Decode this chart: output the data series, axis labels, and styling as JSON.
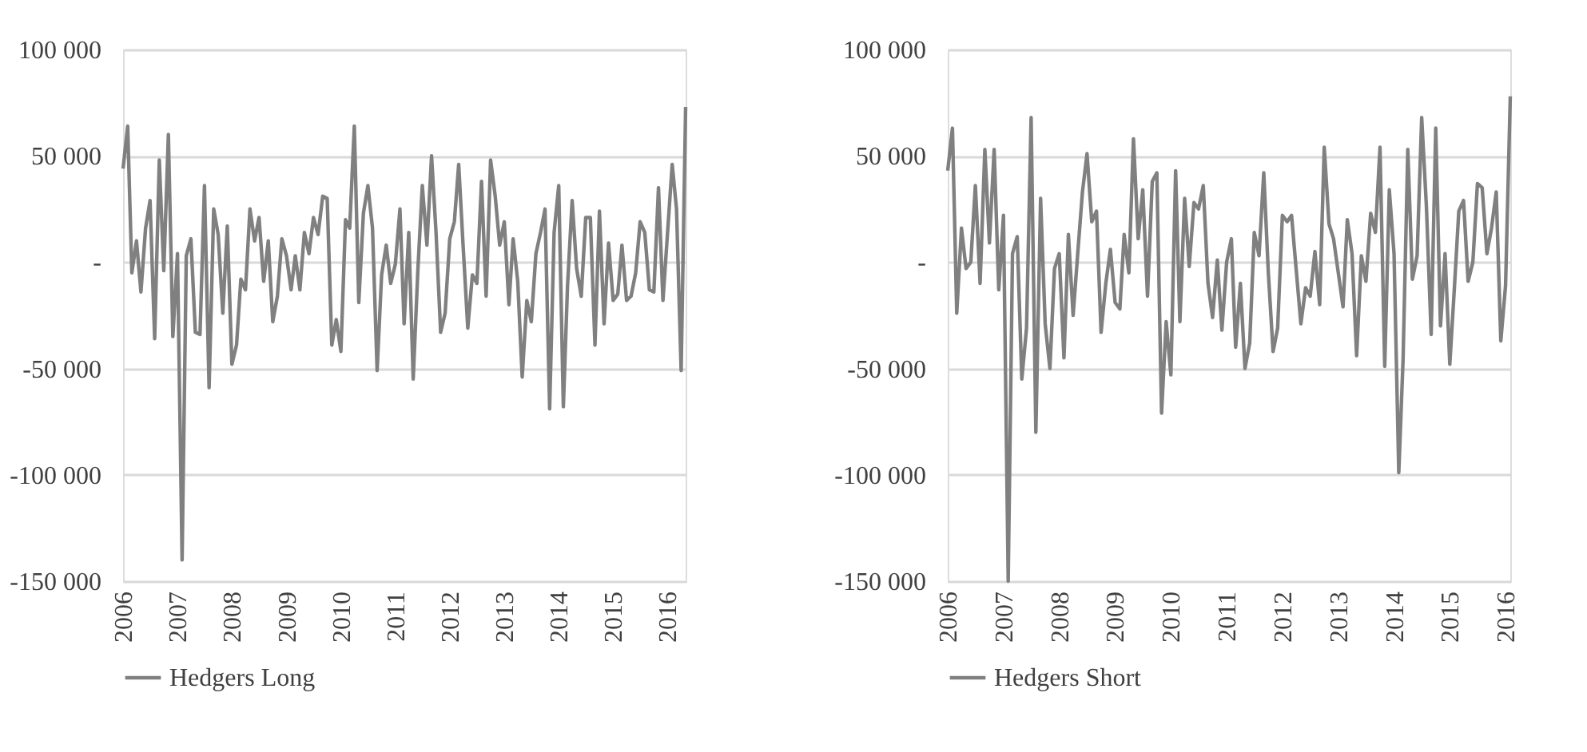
{
  "chart_data": [
    {
      "type": "line",
      "legend": "bottom",
      "grid": "y",
      "line_style": "solid",
      "xlim": [
        "2006-01",
        "2016-05"
      ],
      "xticks": [
        "2006",
        "2007",
        "2008",
        "2009",
        "2010",
        "2011",
        "2012",
        "2013",
        "2014",
        "2015",
        "2016"
      ],
      "ylim": [
        -150000,
        100000
      ],
      "yticks": [
        {
          "value": -150000,
          "label": "-150 000"
        },
        {
          "value": -100000,
          "label": "-100 000"
        },
        {
          "value": -50000,
          "label": "-50 000"
        },
        {
          "value": 0,
          "label": "-"
        },
        {
          "value": 50000,
          "label": "50 000"
        },
        {
          "value": 100000,
          "label": "100 000"
        }
      ],
      "x": [
        "2006-01",
        "2006-02",
        "2006-03",
        "2006-04",
        "2006-05",
        "2006-06",
        "2006-07",
        "2006-08",
        "2006-09",
        "2006-10",
        "2006-11",
        "2006-12",
        "2007-01",
        "2007-02",
        "2007-03",
        "2007-04",
        "2007-05",
        "2007-06",
        "2007-07",
        "2007-08",
        "2007-09",
        "2007-10",
        "2007-11",
        "2007-12",
        "2008-01",
        "2008-02",
        "2008-03",
        "2008-04",
        "2008-05",
        "2008-06",
        "2008-07",
        "2008-08",
        "2008-09",
        "2008-10",
        "2008-11",
        "2008-12",
        "2009-01",
        "2009-02",
        "2009-03",
        "2009-04",
        "2009-05",
        "2009-06",
        "2009-07",
        "2009-08",
        "2009-09",
        "2009-10",
        "2009-11",
        "2009-12",
        "2010-01",
        "2010-02",
        "2010-03",
        "2010-04",
        "2010-05",
        "2010-06",
        "2010-07",
        "2010-08",
        "2010-09",
        "2010-10",
        "2010-11",
        "2010-12",
        "2011-01",
        "2011-02",
        "2011-03",
        "2011-04",
        "2011-05",
        "2011-06",
        "2011-07",
        "2011-08",
        "2011-09",
        "2011-10",
        "2011-11",
        "2011-12",
        "2012-01",
        "2012-02",
        "2012-03",
        "2012-04",
        "2012-05",
        "2012-06",
        "2012-07",
        "2012-08",
        "2012-09",
        "2012-10",
        "2012-11",
        "2012-12",
        "2013-01",
        "2013-02",
        "2013-03",
        "2013-04",
        "2013-05",
        "2013-06",
        "2013-07",
        "2013-08",
        "2013-09",
        "2013-10",
        "2013-11",
        "2013-12",
        "2014-01",
        "2014-02",
        "2014-03",
        "2014-04",
        "2014-05",
        "2014-06",
        "2014-07",
        "2014-08",
        "2014-09",
        "2014-10",
        "2014-11",
        "2014-12",
        "2015-01",
        "2015-02",
        "2015-03",
        "2015-04",
        "2015-05",
        "2015-06",
        "2015-07",
        "2015-08",
        "2015-09",
        "2015-10",
        "2015-11",
        "2015-12",
        "2016-01",
        "2016-02",
        "2016-03",
        "2016-04",
        "2016-05"
      ],
      "series": [
        {
          "name": "Hedgers Long",
          "color": "#808080",
          "values": [
            44000,
            64000,
            -5000,
            10000,
            -14000,
            16000,
            29000,
            -36000,
            48000,
            -4000,
            60000,
            -35000,
            4000,
            -140000,
            3000,
            11000,
            -33000,
            -34000,
            36000,
            -59000,
            25000,
            13000,
            -24000,
            17000,
            -48000,
            -39000,
            -8000,
            -13000,
            25000,
            10000,
            21000,
            -9000,
            10000,
            -28000,
            -16000,
            11000,
            3000,
            -13000,
            3000,
            -13000,
            14000,
            4000,
            21000,
            13000,
            31000,
            30000,
            -39000,
            -27000,
            -42000,
            20000,
            16000,
            64000,
            -19000,
            23000,
            36000,
            16000,
            -51000,
            -6000,
            8000,
            -10000,
            -1000,
            25000,
            -29000,
            14000,
            -55000,
            -4000,
            36000,
            8000,
            50000,
            14000,
            -33000,
            -24000,
            11000,
            19000,
            46000,
            6000,
            -31000,
            -6000,
            -10000,
            38000,
            -16000,
            48000,
            31000,
            8000,
            19000,
            -20000,
            11000,
            -9000,
            -54000,
            -18000,
            -28000,
            4000,
            14000,
            25000,
            -69000,
            14000,
            36000,
            -68000,
            -11000,
            29000,
            -3000,
            -16000,
            21000,
            21000,
            -39000,
            24000,
            -29000,
            9000,
            -18000,
            -15000,
            8000,
            -18000,
            -16000,
            -5000,
            19000,
            14000,
            -13000,
            -14000,
            35000,
            -18000,
            14000,
            46000,
            25000,
            -51000,
            73000
          ]
        }
      ]
    },
    {
      "type": "line",
      "legend": "bottom",
      "grid": "y",
      "line_style": "solid",
      "xlim": [
        "2006-01",
        "2016-02"
      ],
      "xticks": [
        "2006",
        "2007",
        "2008",
        "2009",
        "2010",
        "2011",
        "2012",
        "2013",
        "2014",
        "2015",
        "2016"
      ],
      "ylim": [
        -150000,
        100000
      ],
      "yticks": [
        {
          "value": -150000,
          "label": "-150 000"
        },
        {
          "value": -100000,
          "label": "-100 000"
        },
        {
          "value": -50000,
          "label": "-50 000"
        },
        {
          "value": 0,
          "label": "-"
        },
        {
          "value": 50000,
          "label": "50 000"
        },
        {
          "value": 100000,
          "label": "100 000"
        }
      ],
      "x": [
        "2006-01",
        "2006-02",
        "2006-03",
        "2006-04",
        "2006-05",
        "2006-06",
        "2006-07",
        "2006-08",
        "2006-09",
        "2006-10",
        "2006-11",
        "2006-12",
        "2007-01",
        "2007-02",
        "2007-03",
        "2007-04",
        "2007-05",
        "2007-06",
        "2007-07",
        "2007-08",
        "2007-09",
        "2007-10",
        "2007-11",
        "2007-12",
        "2008-01",
        "2008-02",
        "2008-03",
        "2008-04",
        "2008-05",
        "2008-06",
        "2008-07",
        "2008-08",
        "2008-09",
        "2008-10",
        "2008-11",
        "2008-12",
        "2009-01",
        "2009-02",
        "2009-03",
        "2009-04",
        "2009-05",
        "2009-06",
        "2009-07",
        "2009-08",
        "2009-09",
        "2009-10",
        "2009-11",
        "2009-12",
        "2010-01",
        "2010-02",
        "2010-03",
        "2010-04",
        "2010-05",
        "2010-06",
        "2010-07",
        "2010-08",
        "2010-09",
        "2010-10",
        "2010-11",
        "2010-12",
        "2011-01",
        "2011-02",
        "2011-03",
        "2011-04",
        "2011-05",
        "2011-06",
        "2011-07",
        "2011-08",
        "2011-09",
        "2011-10",
        "2011-11",
        "2011-12",
        "2012-01",
        "2012-02",
        "2012-03",
        "2012-04",
        "2012-05",
        "2012-06",
        "2012-07",
        "2012-08",
        "2012-09",
        "2012-10",
        "2012-11",
        "2012-12",
        "2013-01",
        "2013-02",
        "2013-03",
        "2013-04",
        "2013-05",
        "2013-06",
        "2013-07",
        "2013-08",
        "2013-09",
        "2013-10",
        "2013-11",
        "2013-12",
        "2014-01",
        "2014-02",
        "2014-03",
        "2014-04",
        "2014-05",
        "2014-06",
        "2014-07",
        "2014-08",
        "2014-09",
        "2014-10",
        "2014-11",
        "2014-12",
        "2015-01",
        "2015-02",
        "2015-03",
        "2015-04",
        "2015-05",
        "2015-06",
        "2015-07",
        "2015-08",
        "2015-09",
        "2015-10",
        "2015-11",
        "2015-12",
        "2016-01",
        "2016-02"
      ],
      "series": [
        {
          "name": "Hedgers Short",
          "color": "#808080",
          "values": [
            43000,
            63000,
            -24000,
            16000,
            -3000,
            0,
            36000,
            -10000,
            53000,
            9000,
            53000,
            -13000,
            22000,
            -150000,
            4000,
            12000,
            -55000,
            -31000,
            68000,
            -80000,
            30000,
            -29000,
            -50000,
            -3000,
            4000,
            -45000,
            13000,
            -25000,
            4000,
            33000,
            51000,
            19000,
            24000,
            -33000,
            -10000,
            6000,
            -19000,
            -22000,
            13000,
            -5000,
            58000,
            11000,
            34000,
            -16000,
            38000,
            42000,
            -71000,
            -28000,
            -53000,
            43000,
            -28000,
            30000,
            -2000,
            28000,
            25000,
            36000,
            -10000,
            -26000,
            1000,
            -32000,
            0,
            11000,
            -40000,
            -10000,
            -50000,
            -38000,
            14000,
            3000,
            42000,
            -5000,
            -42000,
            -31000,
            22000,
            19000,
            22000,
            -4000,
            -29000,
            -12000,
            -16000,
            5000,
            -20000,
            54000,
            18000,
            11000,
            -5000,
            -21000,
            20000,
            4000,
            -44000,
            3000,
            -9000,
            23000,
            14000,
            54000,
            -49000,
            34000,
            4000,
            -99000,
            -46000,
            53000,
            -8000,
            3000,
            68000,
            26000,
            -34000,
            63000,
            -30000,
            4000,
            -48000,
            -11000,
            24000,
            29000,
            -9000,
            0,
            37000,
            35000,
            4000,
            16000,
            33000,
            -37000,
            -11000,
            78000
          ]
        }
      ]
    }
  ]
}
